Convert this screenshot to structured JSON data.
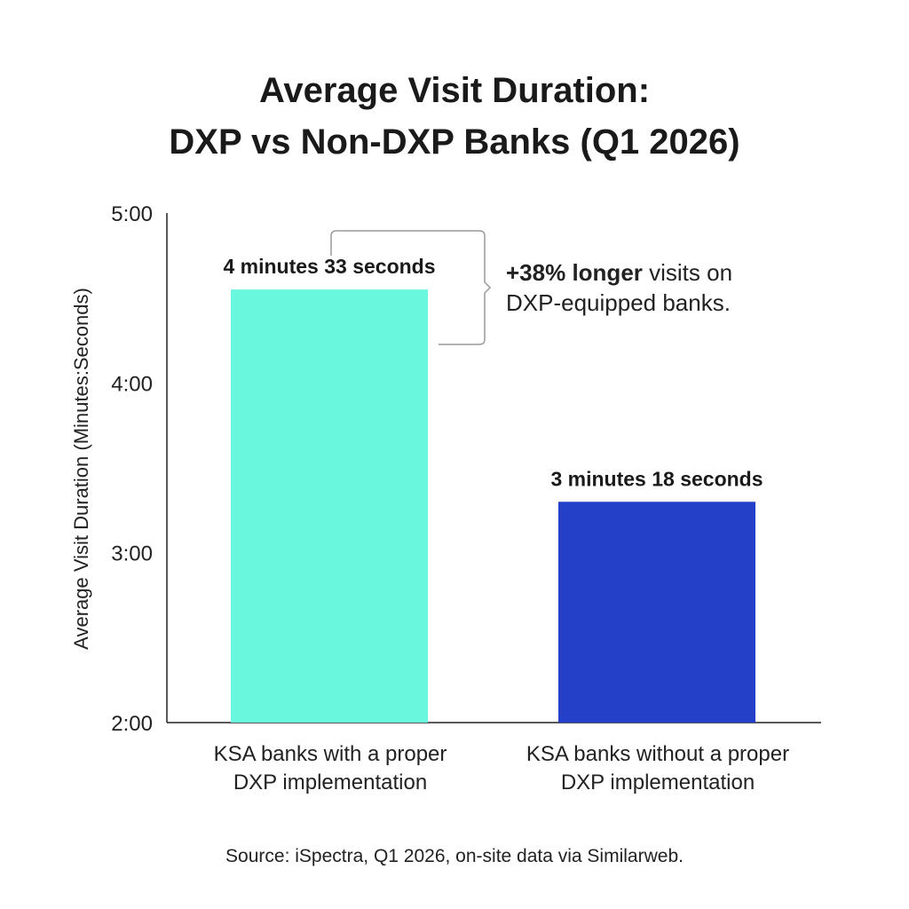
{
  "chart_data": {
    "type": "bar",
    "title_line1": "Average Visit Duration:",
    "title_line2": "DXP vs Non-DXP Banks (Q1 2026)",
    "ylabel": "Average Visit Duration (Minutes:Seconds)",
    "xlabel": "",
    "ylim": [
      2.0,
      5.0
    ],
    "yticks": [
      {
        "value": 2.0,
        "label": "2:00"
      },
      {
        "value": 3.0,
        "label": "3:00"
      },
      {
        "value": 4.0,
        "label": "4:00"
      },
      {
        "value": 5.0,
        "label": "5:00"
      }
    ],
    "categories": [
      [
        "KSA banks with a proper",
        "DXP implementation"
      ],
      [
        "KSA banks without a proper",
        "DXP implementation"
      ]
    ],
    "values": [
      4.55,
      3.3
    ],
    "data_labels": [
      "4 minutes 33 seconds",
      "3 minutes 18 seconds"
    ],
    "colors": [
      "#69F8DE",
      "#2540C8"
    ],
    "grid": false,
    "legend": "none"
  },
  "annotation": {
    "bold": "+38% longer",
    "rest_line1": " visits on",
    "line2": "DXP-equipped banks."
  },
  "source": "Source: iSpectra, Q1 2026, on-site data via Similarweb."
}
